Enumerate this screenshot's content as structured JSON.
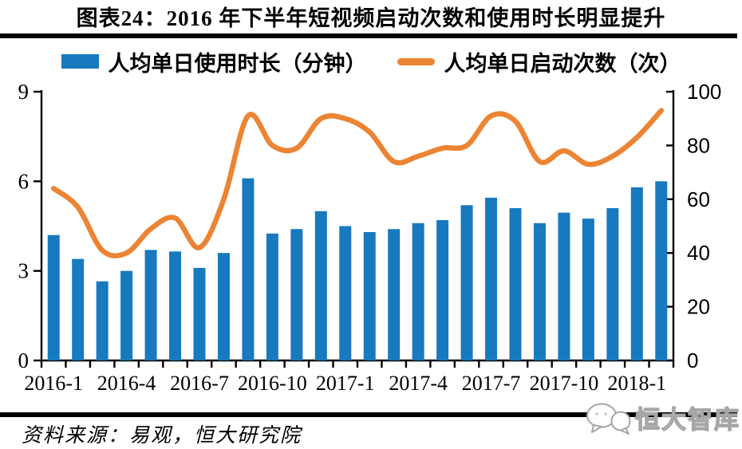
{
  "page": {
    "title": "图表24：2016 年下半年短视频启动次数和使用时长明显提升",
    "source": "资料来源：易观，恒大研究院",
    "logo_text": "恒大智库"
  },
  "colors": {
    "bar_blue": "#1779BE",
    "line_orange": "#EC8433",
    "axis_black": "#000000"
  },
  "legend": {
    "bar_label": "人均单日使用时长（分钟）",
    "line_label": "人均单日启动次数（次）"
  },
  "chart_data": {
    "type": "bar+line",
    "title": "图表24：2016 年下半年短视频启动次数和使用时长明显提升",
    "categories": [
      "2016-1",
      "2016-2",
      "2016-3",
      "2016-4",
      "2016-5",
      "2016-6",
      "2016-7",
      "2016-8",
      "2016-9",
      "2016-10",
      "2016-11",
      "2016-12",
      "2017-1",
      "2017-2",
      "2017-3",
      "2017-4",
      "2017-5",
      "2017-6",
      "2017-7",
      "2017-8",
      "2017-9",
      "2017-10",
      "2017-11",
      "2017-12",
      "2018-1",
      "2018-2"
    ],
    "x_tick_labels": [
      "2016-1",
      "2016-4",
      "2016-7",
      "2016-10",
      "2017-1",
      "2017-4",
      "2017-7",
      "2017-10",
      "2018-1"
    ],
    "series": [
      {
        "name": "人均单日使用时长（分钟）",
        "type": "bar",
        "axis": "left",
        "color": "#1779BE",
        "values": [
          4.2,
          3.4,
          2.65,
          3.0,
          3.7,
          3.65,
          3.1,
          3.6,
          6.1,
          4.25,
          4.4,
          5.0,
          4.5,
          4.3,
          4.4,
          4.6,
          4.7,
          5.2,
          5.45,
          5.1,
          4.6,
          4.95,
          4.75,
          5.1,
          5.8,
          6.0
        ]
      },
      {
        "name": "人均单日启动次数（次）",
        "type": "line",
        "axis": "right",
        "color": "#EC8433",
        "values": [
          64,
          57,
          41,
          40,
          49,
          53,
          42,
          60,
          91,
          80,
          79,
          90,
          90,
          85,
          74,
          76,
          79,
          80,
          91,
          89,
          74,
          78,
          73,
          76,
          83,
          93
        ]
      }
    ],
    "left_axis": {
      "ticks": [
        0,
        3,
        6,
        9
      ],
      "range": [
        0,
        9
      ]
    },
    "right_axis": {
      "ticks": [
        0,
        20,
        40,
        60,
        80,
        100
      ],
      "range": [
        0,
        100
      ]
    },
    "grid": false,
    "legend_position": "top"
  }
}
